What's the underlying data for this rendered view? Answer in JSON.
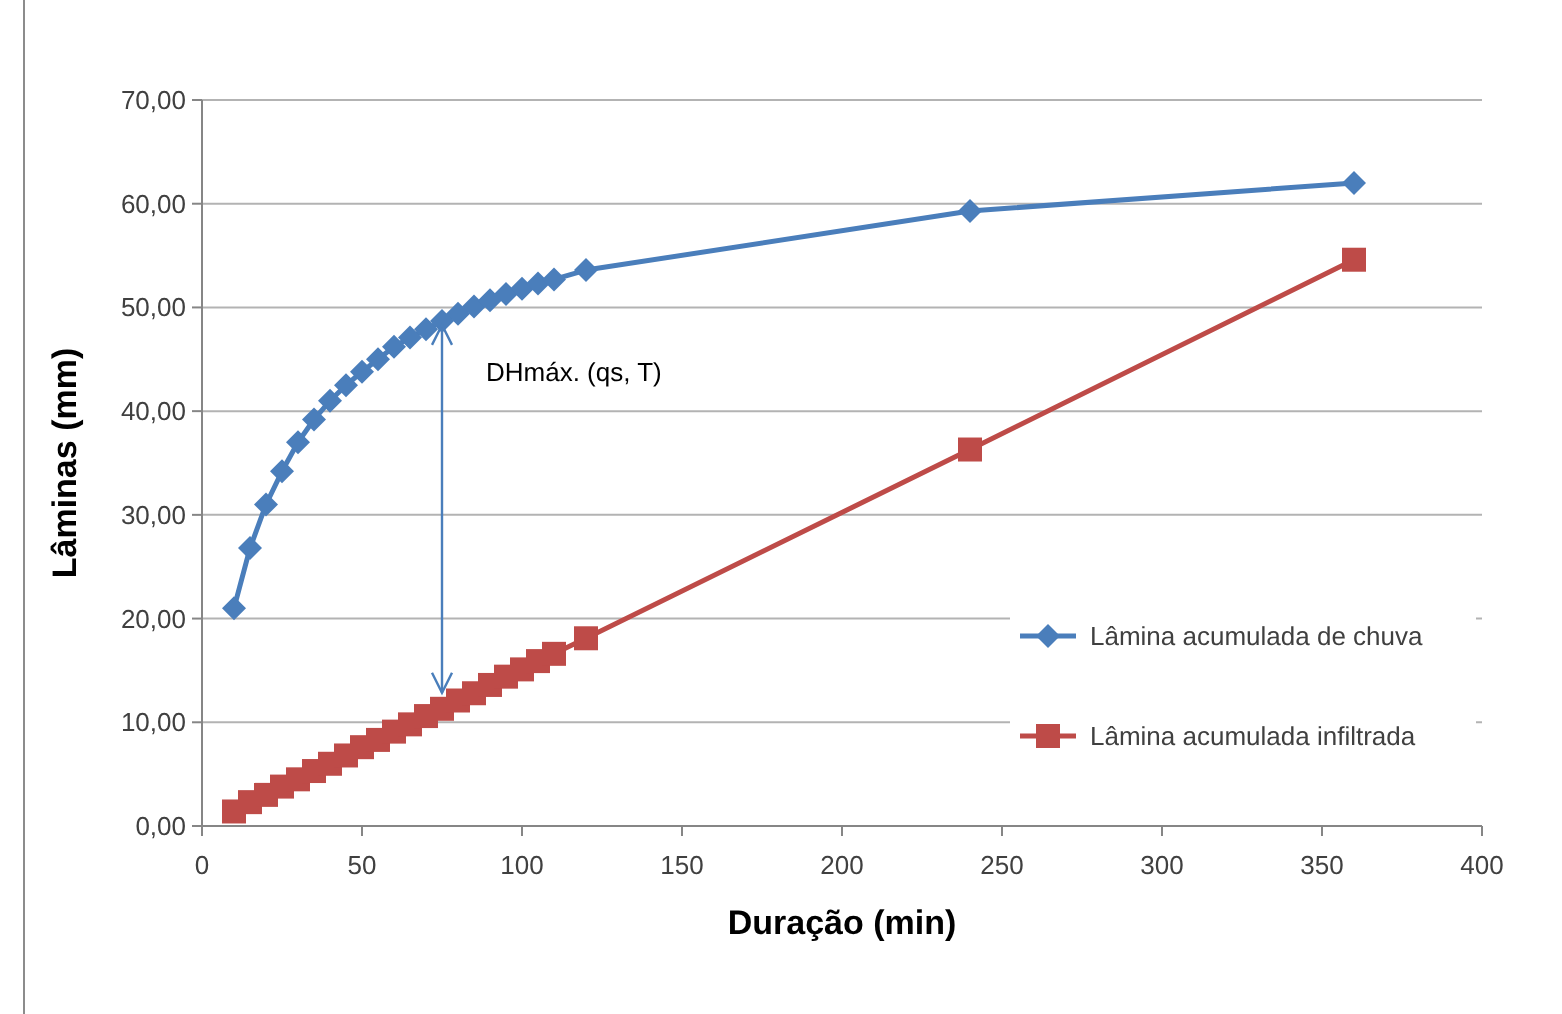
{
  "chart_data": {
    "type": "line",
    "xlabel": "Duração (min)",
    "ylabel": "Lâminas (mm)",
    "xlim": [
      0,
      400
    ],
    "xticks": [
      0,
      50,
      100,
      150,
      200,
      250,
      300,
      350,
      400
    ],
    "ylim": [
      0,
      70
    ],
    "yticks": [
      {
        "value": 0,
        "label": "0,00"
      },
      {
        "value": 10,
        "label": "10,00"
      },
      {
        "value": 20,
        "label": "20,00"
      },
      {
        "value": 30,
        "label": "30,00"
      },
      {
        "value": 40,
        "label": "40,00"
      },
      {
        "value": 50,
        "label": "50,00"
      },
      {
        "value": 60,
        "label": "60,00"
      },
      {
        "value": 70,
        "label": "70,00"
      }
    ],
    "grid": "y",
    "legend": "right",
    "x": [
      10,
      15,
      20,
      25,
      30,
      35,
      40,
      45,
      50,
      55,
      60,
      65,
      70,
      75,
      80,
      85,
      90,
      95,
      100,
      105,
      110,
      120,
      240,
      360
    ],
    "series": [
      {
        "name": "Lâmina acumulada de chuva",
        "color": "#4a7ebb",
        "marker": "diamond",
        "values": [
          21,
          26.8,
          31,
          34.2,
          37,
          39.2,
          41,
          42.5,
          43.8,
          45,
          46.2,
          47.1,
          47.9,
          48.7,
          49.4,
          50.1,
          50.7,
          51.3,
          51.8,
          52.3,
          52.7,
          53.6,
          59.3,
          62
        ]
      },
      {
        "name": "Lâmina acumulada infiltrada",
        "color": "#be4b48",
        "marker": "square",
        "values": [
          1.4,
          2.3,
          3.0,
          3.8,
          4.5,
          5.3,
          6.0,
          6.8,
          7.6,
          8.3,
          9.1,
          9.8,
          10.6,
          11.3,
          12.1,
          12.8,
          13.6,
          14.4,
          15.1,
          15.9,
          16.6,
          18.1,
          36.3,
          54.6
        ]
      }
    ],
    "annotations": [
      {
        "text": "DHmáx. (qs, T)",
        "x": 75,
        "y": 48.7
      }
    ]
  }
}
